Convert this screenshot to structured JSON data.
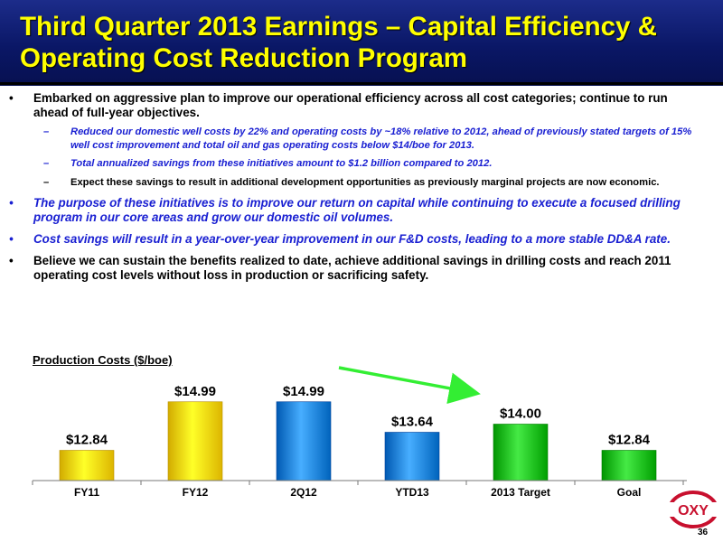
{
  "header": {
    "title_line1": "Third Quarter 2013 Earnings – Capital Efficiency &",
    "title_line2": "Operating Cost Reduction Program"
  },
  "bullets": [
    {
      "marker": "•",
      "text": "Embarked on aggressive plan to improve our operational efficiency across all cost categories; continue to run ahead of full-year objectives."
    },
    {
      "marker": "–",
      "text": "Reduced our domestic well costs by 22% and operating costs by ~18% relative to 2012, ahead of previously stated targets of 15% well cost improvement and total oil and gas operating costs below $14/boe for 2013."
    },
    {
      "marker": "–",
      "text": "Total annualized savings from these initiatives amount to $1.2 billion compared to 2012."
    },
    {
      "marker": "–",
      "text": "Expect these savings to result in additional development opportunities as previously marginal projects are now economic."
    },
    {
      "marker": "•",
      "text": "The purpose of these initiatives is to improve our return on capital while continuing to execute a focused drilling program in our core areas and grow our domestic oil volumes."
    },
    {
      "marker": "•",
      "text": "Cost savings will result in a year-over-year improvement in our F&D costs, leading to a more stable DD&A rate."
    },
    {
      "marker": "•",
      "text": "Believe we can sustain the benefits realized to date, achieve additional savings in drilling costs and reach 2011 operating cost levels without loss in production or sacrificing safety."
    }
  ],
  "chart_data": {
    "type": "bar",
    "title": "Production Costs ($/boe)",
    "categories": [
      "FY11",
      "FY12",
      "2Q12",
      "YTD13",
      "2013 Target",
      "Goal"
    ],
    "values": [
      12.84,
      14.99,
      14.99,
      13.64,
      14.0,
      12.84
    ],
    "value_labels": [
      "$12.84",
      "$14.99",
      "$14.99",
      "$13.64",
      "$14.00",
      "$12.84"
    ],
    "bar_colors": [
      "#ffd800",
      "#ffd800",
      "#1f86df",
      "#1f86df",
      "#1dc21d",
      "#1dc21d"
    ],
    "ylim": [
      11.5,
      15.5
    ],
    "trend_arrow_color": "#33ee33"
  },
  "logo": {
    "text": "OXY"
  },
  "footer": {
    "page_number": "36"
  }
}
